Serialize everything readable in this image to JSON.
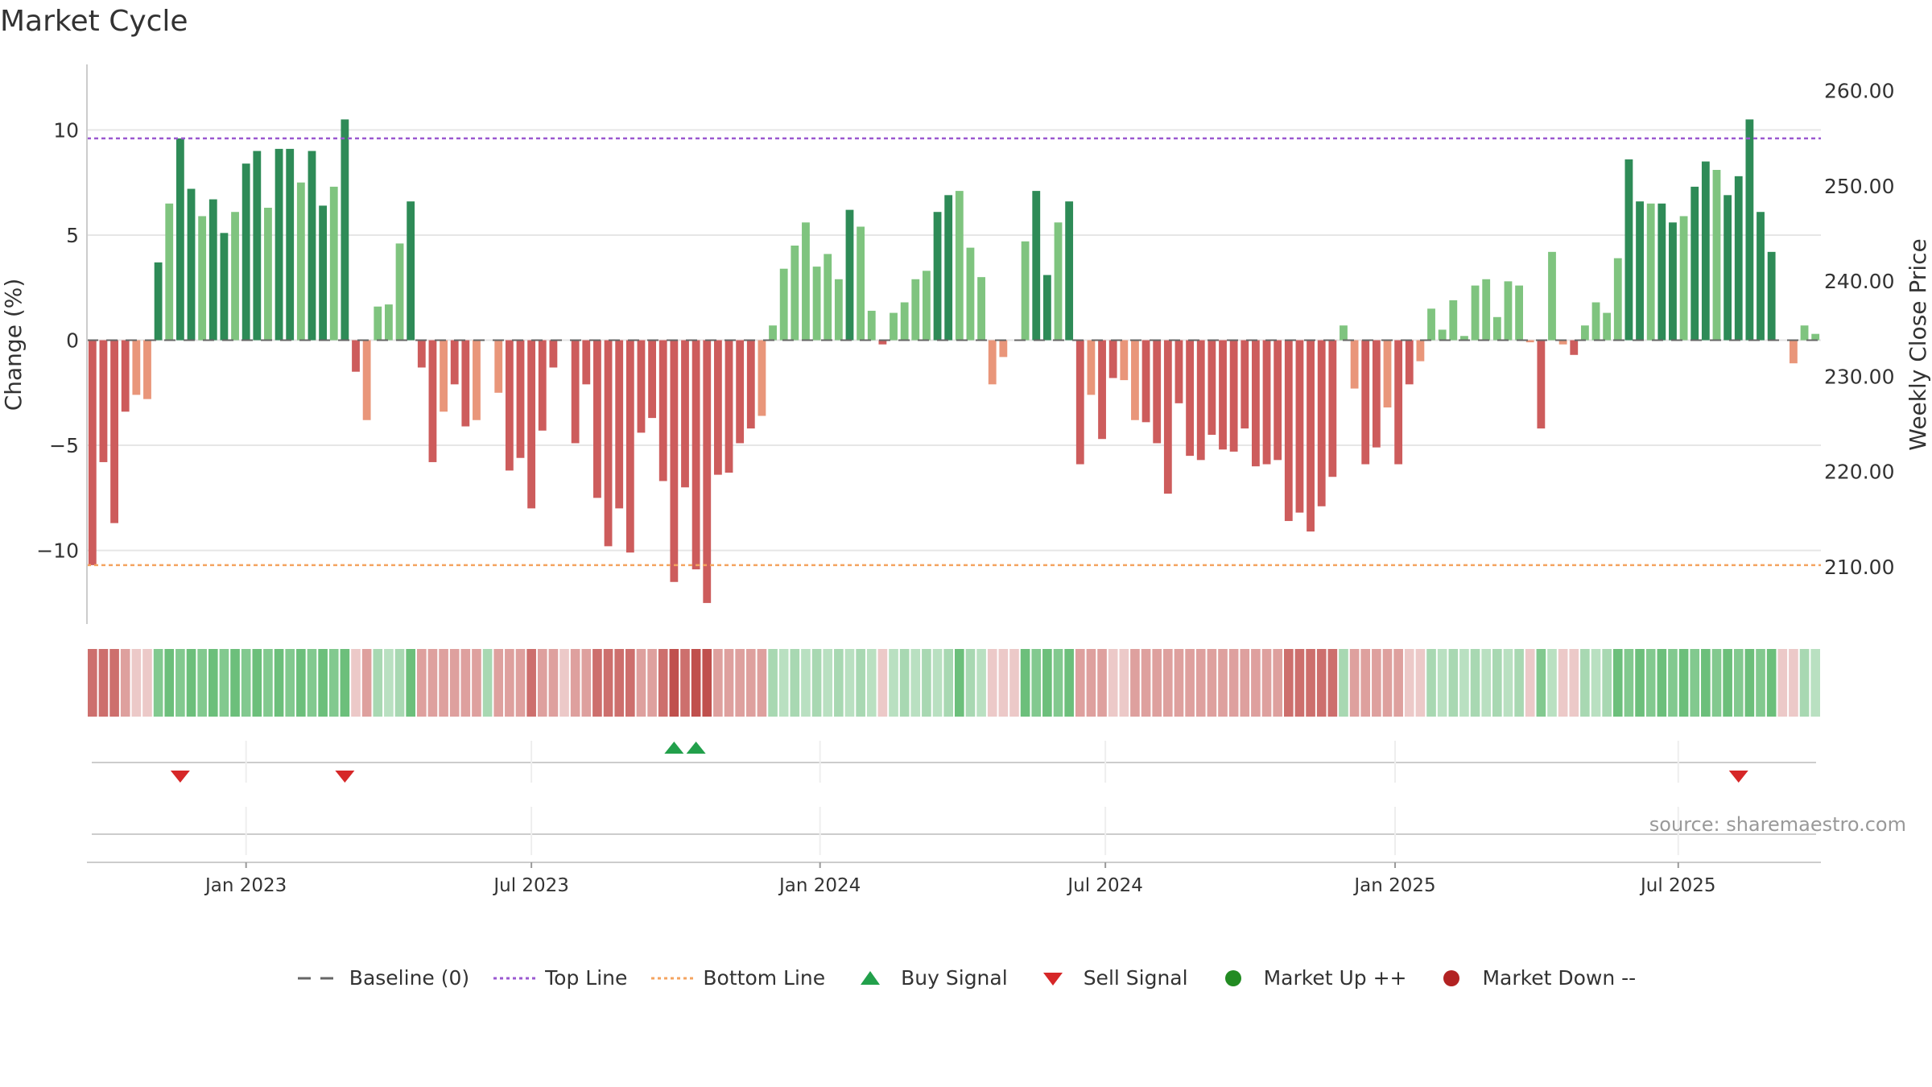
{
  "chart_data": {
    "type": "bar",
    "title": "Market Cycle",
    "ylabel": "Change (%)",
    "ylabel_right": "Weekly Close Price",
    "ylim": [
      -13.5,
      13.5
    ],
    "yticks": [
      -10,
      -5,
      0,
      5,
      10
    ],
    "ytick_labels": [
      "−10",
      "−5",
      "0",
      "5",
      "10"
    ],
    "right_ylim": [
      204.0,
      263.6
    ],
    "right_yticks": [
      210,
      220,
      230,
      240,
      250,
      260
    ],
    "right_ytick_labels": [
      "210.00",
      "220.00",
      "230.00",
      "240.00",
      "250.00",
      "260.00"
    ],
    "x_tick_labels": [
      "Jan 2023",
      "Jul 2023",
      "Jan 2024",
      "Jul 2024",
      "Jan 2025",
      "Jul 2025"
    ],
    "x_tick_positions": [
      14.5,
      40.5,
      66.8,
      92.8,
      119.2,
      145.0
    ],
    "top_line": 9.6,
    "bottom_line": -10.7,
    "baseline": 0,
    "colors": {
      "strong_up": "#2e8b57",
      "weak_up": "#7fc47f",
      "strong_down": "#cd5c5c",
      "weak_down": "#e9967a",
      "top_line": "#9b59d0",
      "bottom_line": "#f4a460",
      "baseline": "#666666",
      "buy": "#22a04b",
      "sell": "#d62728",
      "market_up": "#228b22",
      "market_down": "#b22222",
      "grid": "#e6e6e6"
    },
    "values": [
      -10.7,
      -5.8,
      -8.7,
      -3.4,
      -2.6,
      -2.8,
      3.7,
      6.5,
      9.6,
      7.2,
      5.9,
      6.7,
      5.1,
      6.1,
      8.4,
      9.0,
      6.3,
      9.1,
      9.1,
      7.5,
      9.0,
      6.4,
      7.3,
      10.5,
      -1.5,
      -3.8,
      1.6,
      1.7,
      4.6,
      6.6,
      -1.3,
      -5.8,
      -3.4,
      -2.1,
      -4.1,
      -3.8,
      0,
      -2.5,
      -6.2,
      -5.6,
      -8.0,
      -4.3,
      -1.3,
      0,
      -4.9,
      -2.1,
      -7.5,
      -9.8,
      -8.0,
      -10.1,
      -4.4,
      -3.7,
      -6.7,
      -11.5,
      -7.0,
      -10.9,
      -12.5,
      -6.4,
      -6.3,
      -4.9,
      -4.2,
      -3.6,
      0.7,
      3.4,
      4.5,
      5.6,
      3.5,
      4.1,
      2.9,
      6.2,
      5.4,
      1.4,
      -0.2,
      1.3,
      1.8,
      2.9,
      3.3,
      6.1,
      6.9,
      7.1,
      4.4,
      3.0,
      -2.1,
      -0.8,
      0,
      4.7,
      7.1,
      3.1,
      5.6,
      6.6,
      -5.9,
      -2.6,
      -4.7,
      -1.8,
      -1.9,
      -3.8,
      -3.9,
      -4.9,
      -7.3,
      -3.0,
      -5.5,
      -5.7,
      -4.5,
      -5.2,
      -5.3,
      -4.2,
      -6.0,
      -5.9,
      -5.7,
      -8.6,
      -8.2,
      -9.1,
      -7.9,
      -6.5,
      0.7,
      -2.3,
      -5.9,
      -5.1,
      -3.2,
      -5.9,
      -2.1,
      -1.0,
      1.5,
      0.5,
      1.9,
      0.2,
      2.6,
      2.9,
      1.1,
      2.8,
      2.6,
      -0.1,
      -4.2,
      4.2,
      -0.2,
      -0.7,
      0.7,
      1.8,
      1.3,
      3.9,
      8.6,
      6.6,
      6.5,
      6.5,
      5.6,
      5.9,
      7.3,
      8.5,
      8.1,
      6.9,
      7.8,
      10.5,
      6.1,
      4.2,
      0,
      -1.1,
      0.7,
      0.3
    ],
    "signals": {
      "sell": [
        8.5,
        23.5,
        150.5
      ],
      "buy": [
        53.5,
        55.5
      ]
    },
    "heat_strip": [
      -3,
      -3,
      -3,
      -2,
      -1,
      -1,
      2,
      2,
      2,
      2,
      2,
      2,
      2,
      2,
      2,
      2,
      2,
      2,
      2,
      2,
      2,
      2,
      2,
      2,
      -1,
      -2,
      1,
      1,
      1,
      2,
      -2,
      -2,
      -2,
      -2,
      -2,
      -2,
      1,
      -2,
      -2,
      -2,
      -3,
      -2,
      -2,
      -1,
      -2,
      -2,
      -3,
      -3,
      -3,
      -3,
      -2,
      -2,
      -3,
      -4,
      -3,
      -4,
      -4,
      -2,
      -2,
      -2,
      -2,
      -2,
      1,
      1,
      1,
      1,
      1,
      1,
      1,
      1,
      1,
      1,
      -1,
      1,
      1,
      1,
      1,
      1,
      1,
      2,
      1,
      1,
      -1,
      -1,
      -1,
      2,
      2,
      2,
      2,
      2,
      -2,
      -2,
      -2,
      -1,
      -1,
      -2,
      -2,
      -2,
      -2,
      -2,
      -2,
      -2,
      -2,
      -2,
      -2,
      -2,
      -2,
      -2,
      -2,
      -3,
      -3,
      -3,
      -3,
      -3,
      1,
      -2,
      -2,
      -2,
      -2,
      -2,
      -1,
      -1,
      1,
      1,
      1,
      1,
      1,
      1,
      1,
      1,
      1,
      -1,
      2,
      1,
      -1,
      -1,
      1,
      1,
      1,
      2,
      2,
      2,
      2,
      2,
      2,
      2,
      2,
      2,
      2,
      2,
      2,
      2,
      2,
      2,
      -1,
      -1,
      1,
      1
    ],
    "source": "source: sharemaestro.com",
    "legend": [
      {
        "label": "Baseline (0)",
        "kind": "dash"
      },
      {
        "label": "Top Line",
        "kind": "dot-purple"
      },
      {
        "label": "Bottom Line",
        "kind": "dot-orange"
      },
      {
        "label": "Buy Signal",
        "kind": "triangle-up"
      },
      {
        "label": "Sell Signal",
        "kind": "triangle-down"
      },
      {
        "label": "Market Up ++",
        "kind": "circle-green"
      },
      {
        "label": "Market Down --",
        "kind": "circle-red"
      }
    ]
  }
}
